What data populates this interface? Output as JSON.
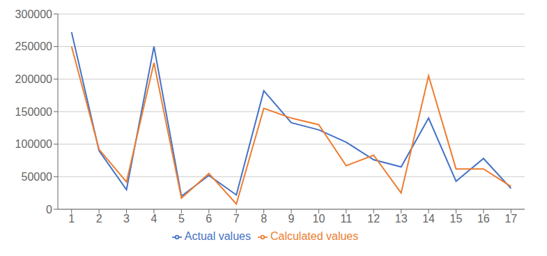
{
  "chart_data": {
    "type": "line",
    "x": [
      1,
      2,
      3,
      4,
      5,
      6,
      7,
      8,
      9,
      10,
      11,
      12,
      13,
      14,
      15,
      16,
      17
    ],
    "series": [
      {
        "name": "Actual values",
        "color": "#4472c4",
        "values": [
          272000,
          90000,
          30000,
          250000,
          20000,
          52000,
          22000,
          182000,
          133000,
          122000,
          103000,
          76000,
          65000,
          140000,
          43000,
          78000,
          32000
        ]
      },
      {
        "name": "Calculated values",
        "color": "#ed7d31",
        "values": [
          250000,
          92000,
          42000,
          225000,
          17000,
          55000,
          8000,
          155000,
          140000,
          130000,
          67000,
          83000,
          25000,
          205000,
          62000,
          62000,
          35000
        ]
      }
    ],
    "xlim": [
      0.5,
      17.5
    ],
    "xticks": [
      1,
      2,
      3,
      4,
      5,
      6,
      7,
      8,
      9,
      10,
      11,
      12,
      13,
      14,
      15,
      16,
      17
    ],
    "ylim": [
      0,
      300000
    ],
    "yticks": [
      0,
      50000,
      100000,
      150000,
      200000,
      250000,
      300000
    ],
    "grid": true,
    "legend": "bottom"
  }
}
